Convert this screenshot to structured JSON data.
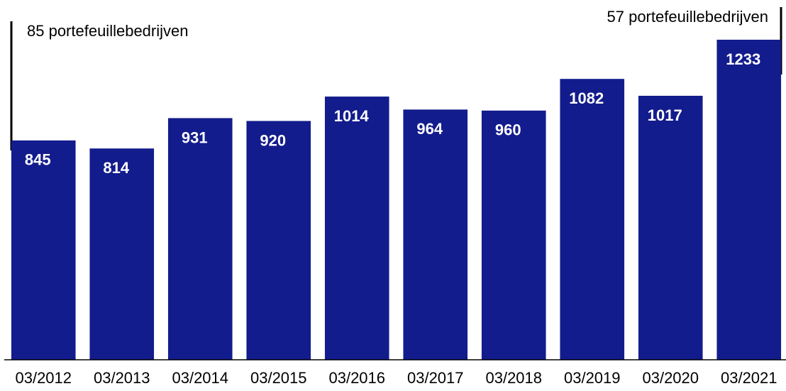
{
  "chart_data": {
    "type": "bar",
    "categories": [
      "03/2012",
      "03/2013",
      "03/2014",
      "03/2015",
      "03/2016",
      "03/2017",
      "03/2018",
      "03/2019",
      "03/2020",
      "03/2021"
    ],
    "values": [
      845,
      814,
      931,
      920,
      1014,
      964,
      960,
      1082,
      1017,
      1233
    ],
    "color": "#131c8c",
    "ylim": [
      0,
      1400
    ],
    "annotations": [
      "85 portefeuillebedrijven",
      "57 portefeuillebedrijven"
    ]
  }
}
